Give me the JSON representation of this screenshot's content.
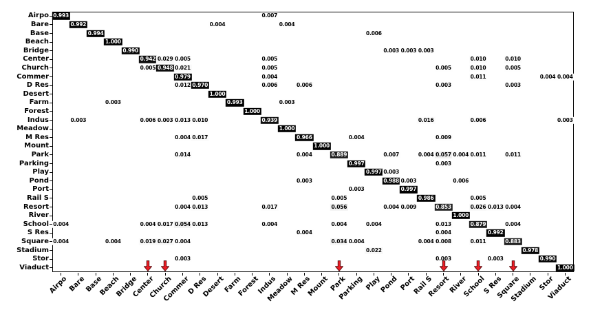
{
  "chart_data": {
    "type": "heatmap",
    "title": "",
    "description": "Normalized confusion matrix, 30 classes, black-on-white greyscale colormap, values shown to 3 decimals, red arrows mark selected predicted-class columns",
    "classes": [
      "Airpo",
      "Bare",
      "Base",
      "Beach",
      "Bridge",
      "Center",
      "Church",
      "Commer",
      "D Res",
      "Desert",
      "Farm",
      "Forest",
      "Indus",
      "Meadow",
      "M Res",
      "Mount",
      "Park",
      "Parking",
      "Play",
      "Pond",
      "Port",
      "Rail S",
      "Resort",
      "River",
      "School",
      "S Res",
      "Square",
      "Stadium",
      "Stor",
      "Viaduct"
    ],
    "x_tick_labels": [
      "Airpo",
      "Bare",
      "Base",
      "Beach",
      "Bridge",
      "Center",
      "Church",
      "Commer",
      "D Res",
      "Desert",
      "Farm",
      "Forest",
      "Indus",
      "Meadow",
      "M Res",
      "Mount",
      "Park",
      "Parking",
      "Play",
      "Pond",
      "Port",
      "Rail S",
      "Resort",
      "River",
      "School",
      "S Res",
      "Square",
      "Stadium",
      "Stor",
      "Viaduct"
    ],
    "y_tick_labels": [
      "Airpo",
      "Bare",
      "Base",
      "Beach",
      "Bridge",
      "Center",
      "Church",
      "Commer",
      "D Res",
      "Desert",
      "Farm",
      "Forest",
      "Indus",
      "Meadow",
      "M Res",
      "Mount",
      "Park",
      "Parking",
      "Play",
      "Pond",
      "Port",
      "Rail S",
      "Resort",
      "River",
      "School",
      "S Res",
      "Square",
      "Stadium",
      "Stor",
      "Viaduct"
    ],
    "cells": [
      [
        0,
        0,
        0.993
      ],
      [
        0,
        12,
        0.007
      ],
      [
        1,
        1,
        0.992
      ],
      [
        1,
        9,
        0.004
      ],
      [
        1,
        13,
        0.004
      ],
      [
        2,
        2,
        0.994
      ],
      [
        2,
        18,
        0.006
      ],
      [
        3,
        3,
        1.0
      ],
      [
        4,
        4,
        0.99
      ],
      [
        4,
        19,
        0.003
      ],
      [
        4,
        20,
        0.003
      ],
      [
        4,
        21,
        0.003
      ],
      [
        5,
        5,
        0.942
      ],
      [
        5,
        6,
        0.029
      ],
      [
        5,
        7,
        0.005
      ],
      [
        5,
        12,
        0.005
      ],
      [
        5,
        24,
        0.01
      ],
      [
        5,
        26,
        0.01
      ],
      [
        6,
        5,
        0.005
      ],
      [
        6,
        6,
        0.948
      ],
      [
        6,
        7,
        0.021
      ],
      [
        6,
        12,
        0.005
      ],
      [
        6,
        22,
        0.005
      ],
      [
        6,
        24,
        0.01
      ],
      [
        6,
        26,
        0.005
      ],
      [
        7,
        7,
        0.979
      ],
      [
        7,
        12,
        0.004
      ],
      [
        7,
        24,
        0.011
      ],
      [
        7,
        28,
        0.004
      ],
      [
        7,
        29,
        0.004
      ],
      [
        8,
        7,
        0.012
      ],
      [
        8,
        8,
        0.97
      ],
      [
        8,
        12,
        0.006
      ],
      [
        8,
        14,
        0.006
      ],
      [
        8,
        22,
        0.003
      ],
      [
        8,
        26,
        0.003
      ],
      [
        9,
        9,
        1.0
      ],
      [
        10,
        3,
        0.003
      ],
      [
        10,
        10,
        0.993
      ],
      [
        10,
        13,
        0.003
      ],
      [
        11,
        11,
        1.0
      ],
      [
        12,
        1,
        0.003
      ],
      [
        12,
        5,
        0.006
      ],
      [
        12,
        6,
        0.003
      ],
      [
        12,
        7,
        0.013
      ],
      [
        12,
        8,
        0.01
      ],
      [
        12,
        12,
        0.939
      ],
      [
        12,
        21,
        0.016
      ],
      [
        12,
        24,
        0.006
      ],
      [
        12,
        29,
        0.003
      ],
      [
        13,
        13,
        1.0
      ],
      [
        14,
        7,
        0.004
      ],
      [
        14,
        8,
        0.017
      ],
      [
        14,
        14,
        0.966
      ],
      [
        14,
        17,
        0.004
      ],
      [
        14,
        22,
        0.009
      ],
      [
        15,
        15,
        1.0
      ],
      [
        16,
        7,
        0.014
      ],
      [
        16,
        14,
        0.004
      ],
      [
        16,
        16,
        0.889
      ],
      [
        16,
        19,
        0.007
      ],
      [
        16,
        21,
        0.004
      ],
      [
        16,
        22,
        0.057
      ],
      [
        16,
        23,
        0.004
      ],
      [
        16,
        24,
        0.011
      ],
      [
        16,
        26,
        0.011
      ],
      [
        17,
        17,
        0.997
      ],
      [
        17,
        22,
        0.003
      ],
      [
        18,
        18,
        0.997
      ],
      [
        18,
        19,
        0.003
      ],
      [
        19,
        14,
        0.003
      ],
      [
        19,
        19,
        0.988
      ],
      [
        19,
        20,
        0.003
      ],
      [
        19,
        23,
        0.006
      ],
      [
        20,
        17,
        0.003
      ],
      [
        20,
        20,
        0.997
      ],
      [
        21,
        8,
        0.005
      ],
      [
        21,
        16,
        0.005
      ],
      [
        21,
        21,
        0.986
      ],
      [
        21,
        24,
        0.005
      ],
      [
        22,
        7,
        0.004
      ],
      [
        22,
        8,
        0.013
      ],
      [
        22,
        12,
        0.017
      ],
      [
        22,
        16,
        0.056
      ],
      [
        22,
        19,
        0.004
      ],
      [
        22,
        20,
        0.009
      ],
      [
        22,
        22,
        0.853
      ],
      [
        22,
        24,
        0.026
      ],
      [
        22,
        25,
        0.013
      ],
      [
        22,
        26,
        0.004
      ],
      [
        23,
        23,
        1.0
      ],
      [
        24,
        0,
        0.004
      ],
      [
        24,
        5,
        0.004
      ],
      [
        24,
        6,
        0.017
      ],
      [
        24,
        7,
        0.054
      ],
      [
        24,
        8,
        0.013
      ],
      [
        24,
        12,
        0.004
      ],
      [
        24,
        16,
        0.004
      ],
      [
        24,
        18,
        0.004
      ],
      [
        24,
        22,
        0.013
      ],
      [
        24,
        24,
        0.879
      ],
      [
        24,
        26,
        0.004
      ],
      [
        25,
        14,
        0.004
      ],
      [
        25,
        22,
        0.004
      ],
      [
        25,
        25,
        0.992
      ],
      [
        26,
        0,
        0.004
      ],
      [
        26,
        3,
        0.004
      ],
      [
        26,
        5,
        0.019
      ],
      [
        26,
        6,
        0.027
      ],
      [
        26,
        7,
        0.004
      ],
      [
        26,
        16,
        0.034
      ],
      [
        26,
        17,
        0.004
      ],
      [
        26,
        21,
        0.004
      ],
      [
        26,
        22,
        0.008
      ],
      [
        26,
        24,
        0.011
      ],
      [
        26,
        26,
        0.883
      ],
      [
        27,
        18,
        0.022
      ],
      [
        27,
        27,
        0.978
      ],
      [
        28,
        7,
        0.003
      ],
      [
        28,
        22,
        0.003
      ],
      [
        28,
        25,
        0.003
      ],
      [
        28,
        28,
        0.99
      ],
      [
        29,
        29,
        1.0
      ]
    ],
    "value_format": "0.000",
    "colormap": "greys-on-white",
    "cell_colors": {
      "diagonal_box": "#000000",
      "diagonal_text": "#ffffff",
      "offdiag_text": "#000000"
    },
    "highlighted_columns": [
      "Center",
      "Church",
      "Park",
      "Resort",
      "School",
      "Square"
    ],
    "arrow_color": "#ed1c24",
    "arrow_outline_color": "#5d0f12",
    "x_tick_rotation_deg": 45,
    "grid": false,
    "legend": "none",
    "value_range": [
      0,
      1
    ]
  }
}
